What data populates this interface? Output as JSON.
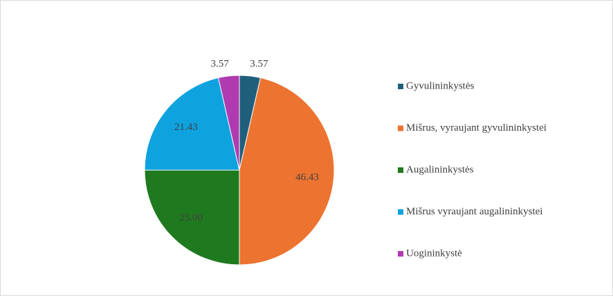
{
  "chart_data": {
    "type": "pie",
    "categories": [
      "Gyvulininkystės",
      "Mišrus, vyraujant gyvulininkystei",
      "Augalininkystės",
      "Mišrus vyraujant augalininkystei",
      "Uogininkystė"
    ],
    "values": [
      3.57,
      46.43,
      25.0,
      21.43,
      3.57
    ],
    "value_labels": [
      "3.57",
      "46.43",
      "25.00",
      "21.43",
      "3.57"
    ],
    "colors": [
      "#1f5f7c",
      "#ed7330",
      "#1f7a1f",
      "#0ea2df",
      "#b03ab0"
    ],
    "legend": "right"
  }
}
